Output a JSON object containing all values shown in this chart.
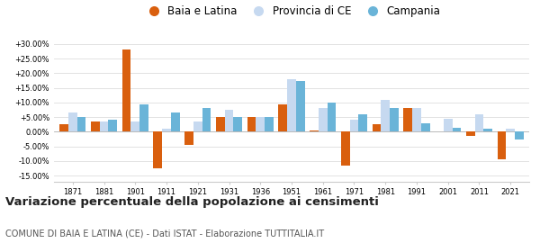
{
  "years": [
    1871,
    1881,
    1901,
    1911,
    1921,
    1931,
    1936,
    1951,
    1961,
    1971,
    1981,
    1991,
    2001,
    2011,
    2021
  ],
  "baia_latina": [
    2.5,
    3.5,
    28.0,
    -12.5,
    -4.5,
    5.0,
    5.0,
    9.5,
    0.5,
    -11.5,
    2.5,
    8.0,
    0.2,
    -1.5,
    -9.5
  ],
  "provincia_ce": [
    6.5,
    3.5,
    3.5,
    1.0,
    3.5,
    7.5,
    5.0,
    18.0,
    8.0,
    4.0,
    11.0,
    8.0,
    4.5,
    6.0,
    1.0
  ],
  "campania": [
    5.0,
    4.0,
    9.5,
    6.5,
    8.0,
    5.0,
    5.0,
    17.5,
    10.0,
    6.0,
    8.0,
    3.0,
    1.5,
    1.0,
    -2.5
  ],
  "color_baia": "#d95f0e",
  "color_provincia": "#c6d9f0",
  "color_campania": "#6ab4d8",
  "title": "Variazione percentuale della popolazione ai censimenti",
  "subtitle": "COMUNE DI BAIA E LATINA (CE) - Dati ISTAT - Elaborazione TUTTITALIA.IT",
  "ylim": [
    -17,
    33
  ],
  "yticks": [
    -15,
    -10,
    -5,
    0,
    5,
    10,
    15,
    20,
    25,
    30
  ],
  "background_color": "#ffffff",
  "legend_labels": [
    "Baia e Latina",
    "Provincia di CE",
    "Campania"
  ]
}
